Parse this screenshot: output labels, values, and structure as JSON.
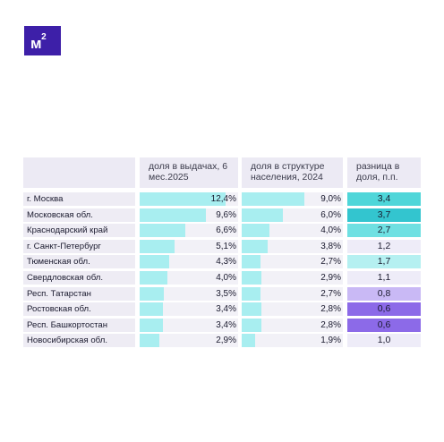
{
  "logo": {
    "text": "м",
    "sup": "2"
  },
  "chart_data": {
    "type": "table",
    "columns": [
      {
        "label": "доля в выдачах, 6 мес.2025"
      },
      {
        "label": "доля в структуре населения, 2024"
      },
      {
        "label": "разница в доля, п.п."
      }
    ],
    "rows": [
      {
        "region": "г. Москва",
        "share_issuance": 12.4,
        "share_issuance_label": "12,4%",
        "share_population": 9.0,
        "share_population_label": "9,0%",
        "diff": 3.4,
        "diff_label": "3,4",
        "diff_color": "#4fd6d9"
      },
      {
        "region": "Московская обл.",
        "share_issuance": 9.6,
        "share_issuance_label": "9,6%",
        "share_population": 6.0,
        "share_population_label": "6,0%",
        "diff": 3.7,
        "diff_label": "3,7",
        "diff_color": "#33c5cf"
      },
      {
        "region": "Краснодарский край",
        "share_issuance": 6.6,
        "share_issuance_label": "6,6%",
        "share_population": 4.0,
        "share_population_label": "4,0%",
        "diff": 2.7,
        "diff_label": "2,7",
        "diff_color": "#6fe0e2"
      },
      {
        "region": "г. Санкт-Петербург",
        "share_issuance": 5.1,
        "share_issuance_label": "5,1%",
        "share_population": 3.8,
        "share_population_label": "3,8%",
        "diff": 1.2,
        "diff_label": "1,2",
        "diff_color": "#eeecf8"
      },
      {
        "region": "Тюменская обл.",
        "share_issuance": 4.3,
        "share_issuance_label": "4,3%",
        "share_population": 2.7,
        "share_population_label": "2,7%",
        "diff": 1.7,
        "diff_label": "1,7",
        "diff_color": "#b5f0f1"
      },
      {
        "region": "Свердловская обл.",
        "share_issuance": 4.0,
        "share_issuance_label": "4,0%",
        "share_population": 2.9,
        "share_population_label": "2,9%",
        "diff": 1.1,
        "diff_label": "1,1",
        "diff_color": "#eeecf8"
      },
      {
        "region": "Респ. Татарстан",
        "share_issuance": 3.5,
        "share_issuance_label": "3,5%",
        "share_population": 2.7,
        "share_population_label": "2,7%",
        "diff": 0.8,
        "diff_label": "0,8",
        "diff_color": "#c9b9f5"
      },
      {
        "region": "Ростовская обл.",
        "share_issuance": 3.4,
        "share_issuance_label": "3,4%",
        "share_population": 2.8,
        "share_population_label": "2,8%",
        "diff": 0.6,
        "diff_label": "0,6",
        "diff_color": "#8c6ae8"
      },
      {
        "region": "Респ. Башкортостан",
        "share_issuance": 3.4,
        "share_issuance_label": "3,4%",
        "share_population": 2.8,
        "share_population_label": "2,8%",
        "diff": 0.6,
        "diff_label": "0,6",
        "diff_color": "#8c6ae8"
      },
      {
        "region": "Новосибирская обл.",
        "share_issuance": 2.9,
        "share_issuance_label": "2,9%",
        "share_population": 1.9,
        "share_population_label": "1,9%",
        "diff": 1.0,
        "diff_label": "1,0",
        "diff_color": "#eeecf8"
      }
    ],
    "bar_color": "#a8eef0",
    "bar_max": 12.4
  }
}
